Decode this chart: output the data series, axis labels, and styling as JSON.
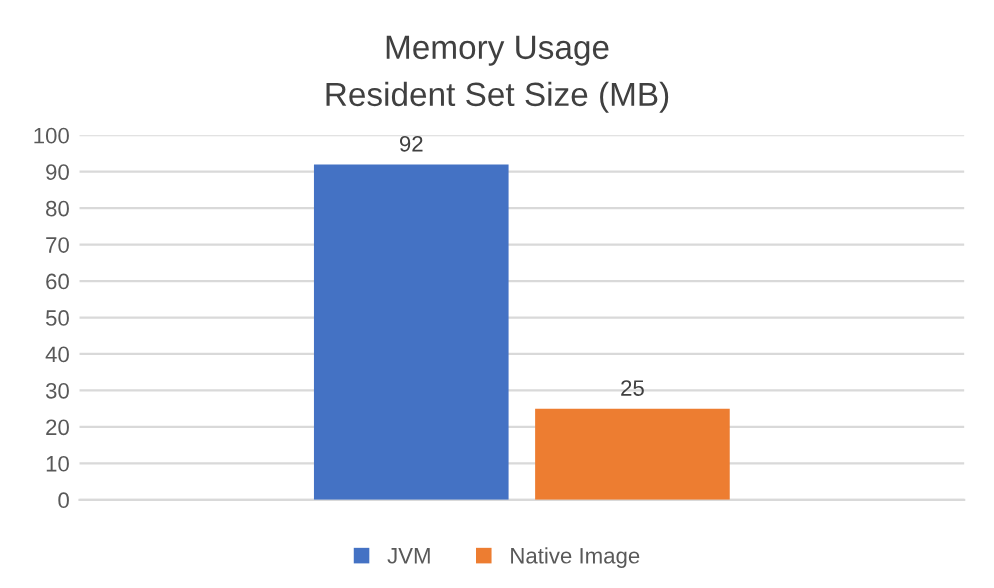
{
  "chart_data": {
    "type": "bar",
    "title": "Memory Usage",
    "subtitle": "Resident Set Size (MB)",
    "categories": [
      null
    ],
    "series": [
      {
        "name": "JVM",
        "color": "#4472c4",
        "values": [
          92
        ]
      },
      {
        "name": "Native Image",
        "color": "#ed7d31",
        "values": [
          25
        ]
      }
    ],
    "ylim": [
      0,
      100
    ],
    "yticks": [
      0,
      10,
      20,
      30,
      40,
      50,
      60,
      70,
      80,
      90,
      100
    ],
    "grid": "y",
    "legend": "bottom",
    "data_labels": true
  }
}
